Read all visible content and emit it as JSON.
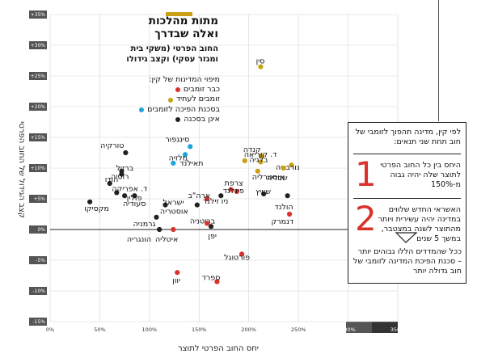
{
  "title": {
    "main": "מתות מהלכות ואלה שבדרך",
    "sub": "החוב הפרטי (משקי בית ומגזר עסקי) וקצב גידולו"
  },
  "legend": {
    "heading": "מיפוי המדינות של קין:",
    "items": [
      {
        "label": "כבר זומבים",
        "color": "#d8322b"
      },
      {
        "label": "זומבים לעתיד",
        "color": "#c9a013"
      },
      {
        "label": "בסכנת הפיכה לזומבים",
        "color": "#1fa3dc"
      },
      {
        "label": "אינן בסכנה",
        "color": "#222222"
      }
    ]
  },
  "info": {
    "intro": "לפי קין, מדינה תהפוך לזומבי של חוב תחת שני תנאים:",
    "conditions": [
      {
        "num": "1",
        "text": "היחס בין כל החוב הפרטי לתוצר שלה יהיה גבוה מ-150%"
      },
      {
        "num": "2",
        "text": "האשראי החדש שלווים במדינה יהיה עשירית ויותר מהתוצר לשנה במצטבר, במשך 5 שנים"
      }
    ],
    "summary": "ככל שהמדדים הללו גבוהים יותר – סכנת הפיכת המדינה לזומבי של חוב גדולה יותר"
  },
  "chart_data": {
    "type": "scatter",
    "xlabel": "יחס החוב הפרטי לתוצר",
    "ylabel": "קצב הגידול של החוב הפרטי",
    "xlim": [
      0,
      350
    ],
    "ylim": [
      -15,
      35
    ],
    "x_ticks": [
      "0%",
      "50%",
      "100%",
      "150%",
      "200%",
      "250%",
      "300%",
      "350%"
    ],
    "y_ticks": [
      "+35%",
      "+30%",
      "+25%",
      "+20%",
      "+15%",
      "+10%",
      "+5%",
      "0%",
      "-5%",
      "-10%",
      "-15%"
    ],
    "grid": true,
    "colors": {
      "red": "#d8322b",
      "gold": "#c9a013",
      "blue": "#1fa3dc",
      "black": "#222222"
    },
    "points": [
      {
        "name": "סין",
        "x": 212,
        "y": 26.5,
        "color": "gold",
        "anchor": "left",
        "dx": 0,
        "dy": -7
      },
      {
        "name": "קנדה",
        "x": 213,
        "y": 12,
        "color": "gold",
        "anchor": "left",
        "dx": -6,
        "dy": -8
      },
      {
        "name": "ד. קוריאה",
        "x": 196,
        "y": 11.2,
        "color": "gold",
        "anchor": "right",
        "dx": 4,
        "dy": -8
      },
      {
        "name": "בלגיה",
        "x": 212,
        "y": 11,
        "color": "gold",
        "anchor": "left",
        "dx": 4,
        "dy": -3
      },
      {
        "name": "נורבגיה",
        "x": 243,
        "y": 10.5,
        "color": "gold",
        "anchor": "left",
        "dx": 5,
        "dy": 3
      },
      {
        "name": "אוסטרליה",
        "x": 209,
        "y": 9.5,
        "color": "gold",
        "anchor": "right",
        "dx": -2,
        "dy": 7
      },
      {
        "name": "שבדיה",
        "x": 235,
        "y": 10,
        "color": "gold",
        "anchor": "left",
        "dx": 0,
        "dy": 12
      },
      {
        "name": "סינגפור",
        "x": 141,
        "y": 13.5,
        "color": "blue",
        "anchor": "left",
        "dx": -6,
        "dy": -9
      },
      {
        "name": "מלזיה",
        "x": 136,
        "y": 12.2,
        "color": "blue",
        "anchor": "left",
        "dx": -2,
        "dy": 4
      },
      {
        "name": "תאילנד",
        "x": 124,
        "y": 10.8,
        "color": "blue",
        "anchor": "right",
        "dx": 13,
        "dy": 0
      },
      {
        "name": "טורקיה",
        "x": 76,
        "y": 12.5,
        "color": "black",
        "anchor": "left",
        "dx": -7,
        "dy": -9
      },
      {
        "name": "ברזיל",
        "x": 72,
        "y": 9.5,
        "color": "black",
        "anchor": "right",
        "dx": -2,
        "dy": -4
      },
      {
        "name": "רוסיה",
        "x": 72,
        "y": 9,
        "color": "black",
        "anchor": "left",
        "dx": 4,
        "dy": 3
      },
      {
        "name": "הודו",
        "x": 60,
        "y": 7.5,
        "color": "black",
        "anchor": "right",
        "dx": -1,
        "dy": -5
      },
      {
        "name": "ד. אפריקה",
        "x": 67,
        "y": 6,
        "color": "black",
        "anchor": "right",
        "dx": -1,
        "dy": -5
      },
      {
        "name": "פולין",
        "x": 85,
        "y": 5.5,
        "color": "black",
        "anchor": "left",
        "dx": 4,
        "dy": 3
      },
      {
        "name": "סעודיה",
        "x": 75,
        "y": 5.5,
        "color": "black",
        "anchor": "right",
        "dx": 3,
        "dy": 10
      },
      {
        "name": "מקסיקו",
        "x": 40,
        "y": 4.5,
        "color": "black",
        "anchor": "right",
        "dx": -2,
        "dy": 8
      },
      {
        "name": "ישראל",
        "x": 116,
        "y": 4,
        "color": "black",
        "anchor": "left",
        "dx": 18,
        "dy": -3
      },
      {
        "name": "גרמניה",
        "x": 107,
        "y": 2,
        "color": "black",
        "anchor": "left",
        "dx": -6,
        "dy": 8
      },
      {
        "name": "ארה\"ב",
        "x": 158,
        "y": 5,
        "color": "red",
        "anchor": "left",
        "dx": -1,
        "dy": -4
      },
      {
        "name": "אוסטריה",
        "x": 148,
        "y": 4,
        "color": "black",
        "anchor": "left",
        "dx": -16,
        "dy": 8
      },
      {
        "name": "צרפת",
        "x": 182,
        "y": 6.5,
        "color": "red",
        "anchor": "right",
        "dx": -3,
        "dy": -8
      },
      {
        "name": "פינלנד",
        "x": 188,
        "y": 6.2,
        "color": "red",
        "anchor": "left",
        "dx": 4,
        "dy": -1
      },
      {
        "name": "ניו זילנד",
        "x": 172,
        "y": 5.5,
        "color": "black",
        "anchor": "left",
        "dx": 4,
        "dy": 7
      },
      {
        "name": "שוויץ",
        "x": 215,
        "y": 5.8,
        "color": "black",
        "anchor": "left",
        "dx": 4,
        "dy": -3
      },
      {
        "name": "הולנד",
        "x": 239,
        "y": 5.5,
        "color": "black",
        "anchor": "left",
        "dx": 2,
        "dy": 14
      },
      {
        "name": "דנמרק",
        "x": 241,
        "y": 2.5,
        "color": "red",
        "anchor": "left",
        "dx": 0,
        "dy": 9
      },
      {
        "name": "בריטניה",
        "x": 158,
        "y": 1,
        "color": "red",
        "anchor": "left",
        "dx": 5,
        "dy": -3
      },
      {
        "name": "יפן",
        "x": 162,
        "y": 0.5,
        "color": "black",
        "anchor": "left",
        "dx": 2,
        "dy": 12
      },
      {
        "name": "הונגריה",
        "x": 110,
        "y": 0,
        "color": "black",
        "anchor": "left",
        "dx": -15,
        "dy": 12
      },
      {
        "name": "איטליה",
        "x": 124,
        "y": 0,
        "color": "red",
        "anchor": "left",
        "dx": 1,
        "dy": 12
      },
      {
        "name": "פורטוגל",
        "x": 193,
        "y": -4,
        "color": "red",
        "anchor": "left",
        "dx": 5,
        "dy": 4
      },
      {
        "name": "יוון",
        "x": 128,
        "y": -7,
        "color": "red",
        "anchor": "right",
        "dx": -1,
        "dy": 10
      },
      {
        "name": "ספרד",
        "x": 168,
        "y": -8.5,
        "color": "red",
        "anchor": "left",
        "dx": -1,
        "dy": -5
      }
    ]
  }
}
